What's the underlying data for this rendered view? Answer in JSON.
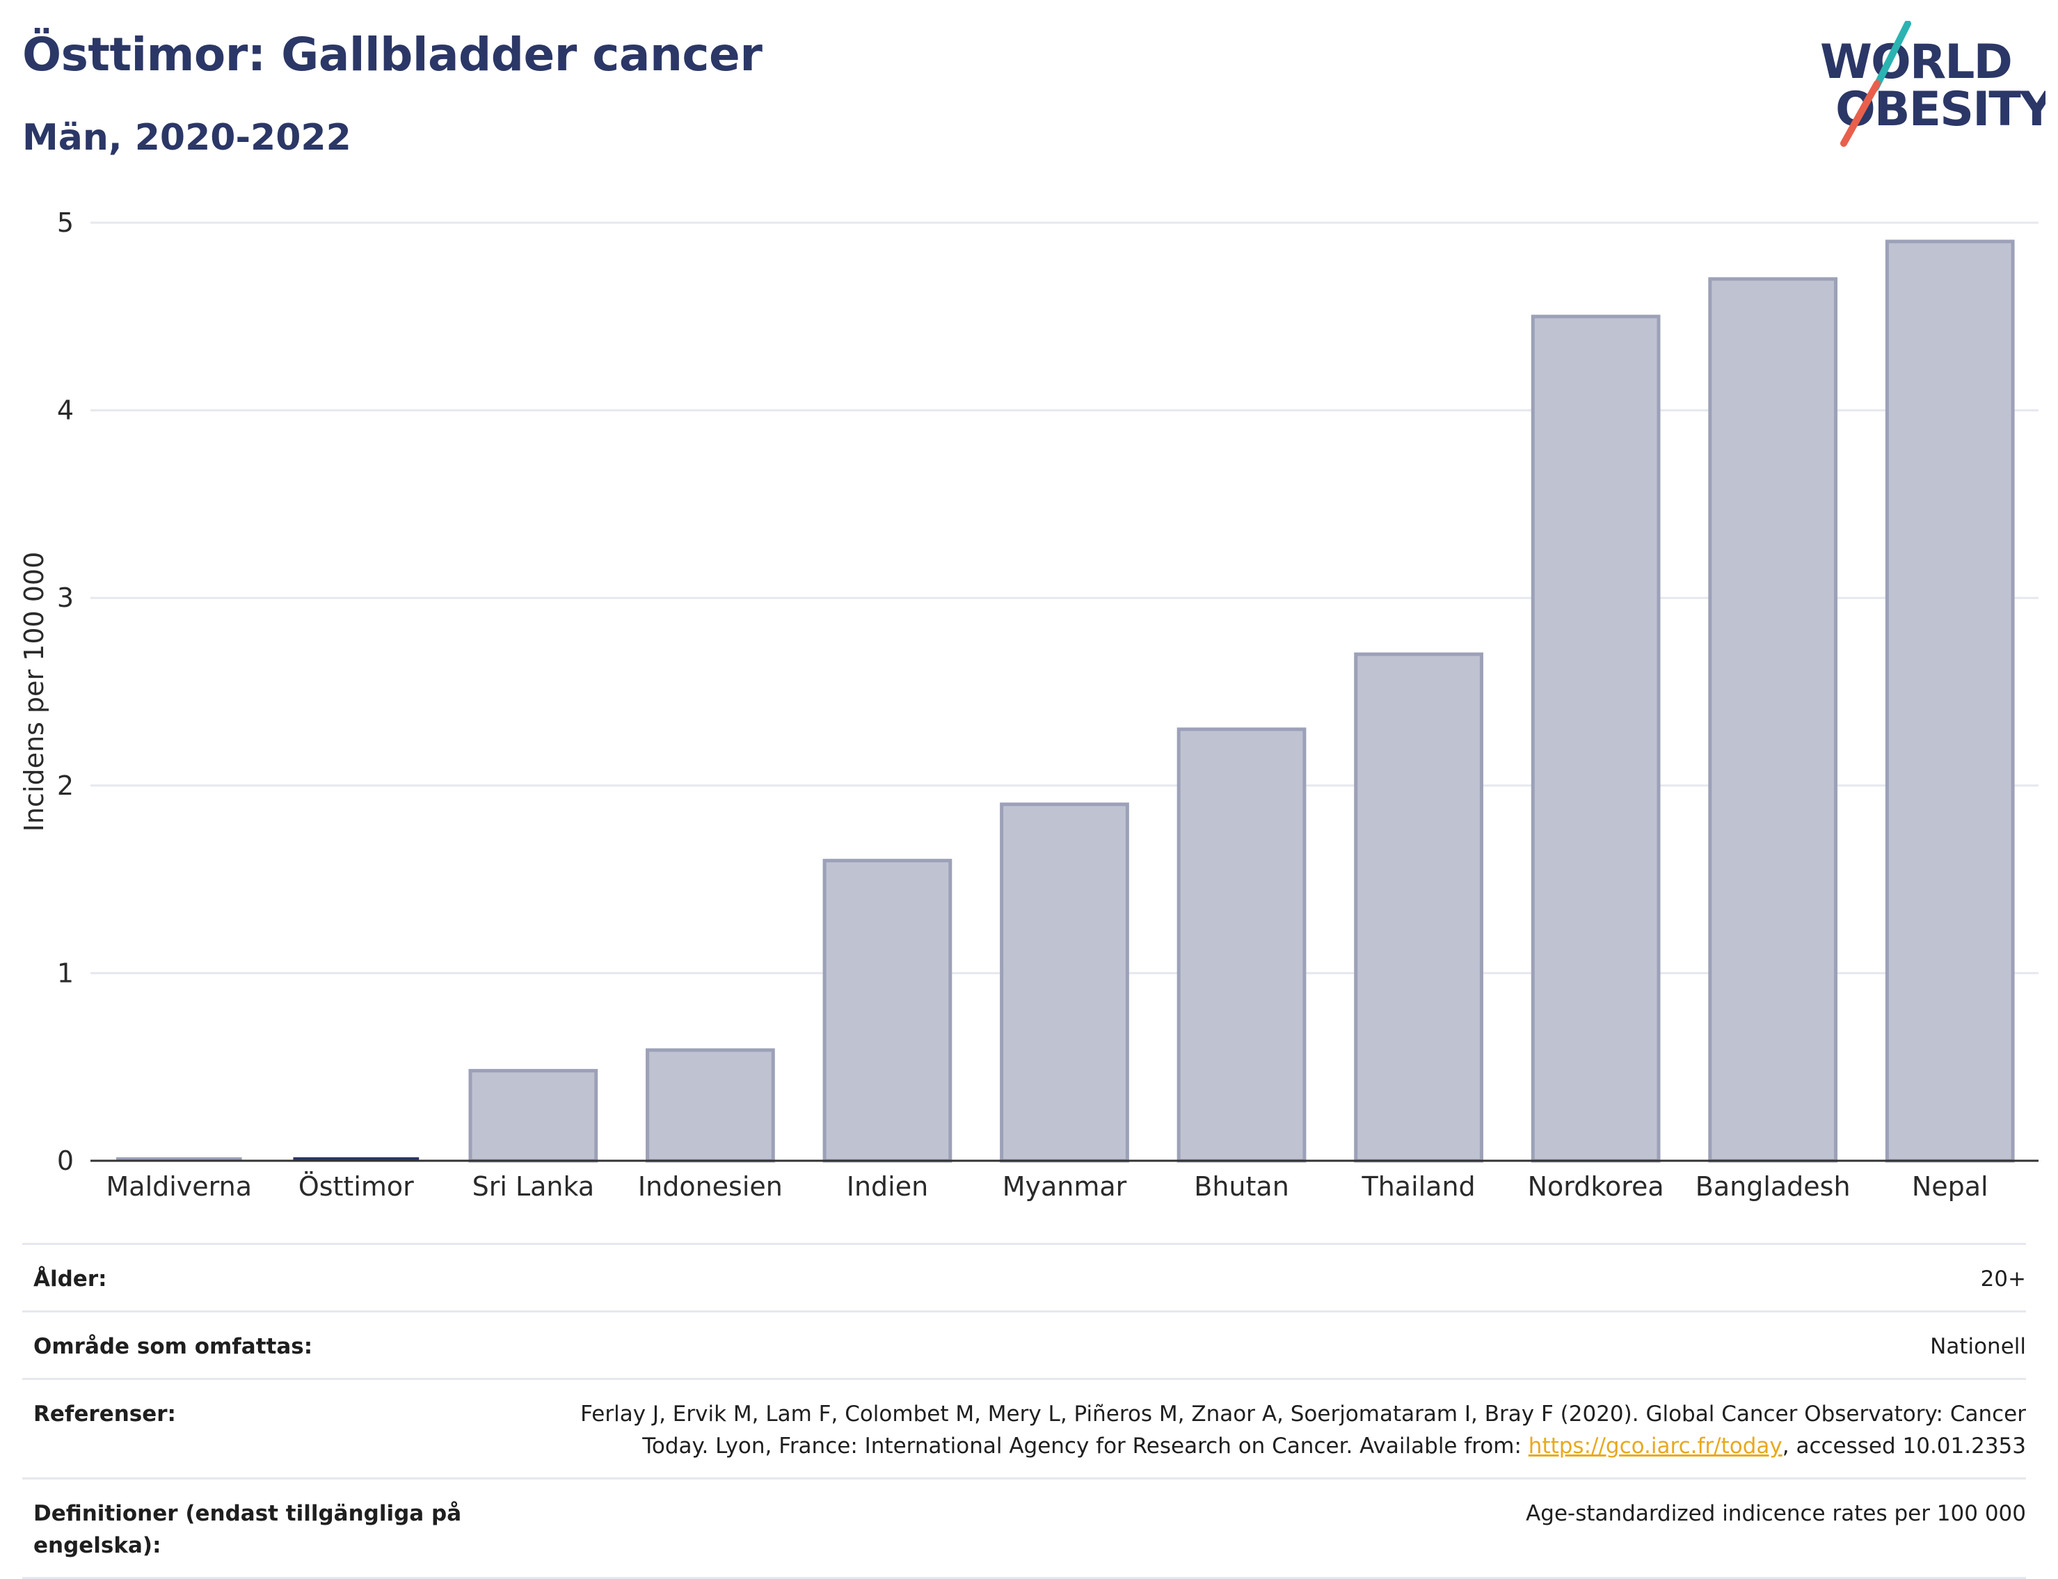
{
  "header": {
    "title": "Östtimor: Gallbladder cancer",
    "subtitle": "Män, 2020-2022"
  },
  "logo": {
    "line1": "WORLD",
    "line2": "OBESITY",
    "accent_colors": [
      "#2bb3b1",
      "#e8604c"
    ],
    "text_color": "#2b3766"
  },
  "chart_data": {
    "type": "bar",
    "categories": [
      "Maldiverna",
      "Östtimor",
      "Sri Lanka",
      "Indonesien",
      "Indien",
      "Myanmar",
      "Bhutan",
      "Thailand",
      "Nordkorea",
      "Bangladesh",
      "Nepal"
    ],
    "values": [
      0.0,
      0.0,
      0.48,
      0.59,
      1.6,
      1.9,
      2.3,
      2.7,
      4.5,
      4.7,
      4.9
    ],
    "highlight": "Östtimor",
    "ylabel": "Incidens per 100 000",
    "ylim": [
      0,
      5
    ],
    "yticks": [
      0,
      1,
      2,
      3,
      4,
      5
    ],
    "grid": true,
    "colors": {
      "bar": "#bfc2d1",
      "bar_stroke": "#9ca1b8",
      "highlight": "#2b3766"
    }
  },
  "meta": {
    "age_label": "Ålder:",
    "age_value": "20+",
    "area_label": "Område som omfattas:",
    "area_value": "Nationell",
    "refs_label": "Referenser:",
    "refs_text_1": "Ferlay J, Ervik M, Lam F, Colombet M, Mery L, Piñeros M, Znaor A, Soerjomataram I, Bray F (2020). Global Cancer Observatory: Cancer",
    "refs_text_2": "Today. Lyon, France: International Agency for Research on Cancer. Available from: ",
    "refs_link": "https://gco.iarc.fr/today",
    "refs_text_3": ", accessed 10.01.2353",
    "defs_label": "Definitioner (endast tillgängliga på engelska):",
    "defs_value": "Age-standardized indicence rates per 100 000"
  }
}
